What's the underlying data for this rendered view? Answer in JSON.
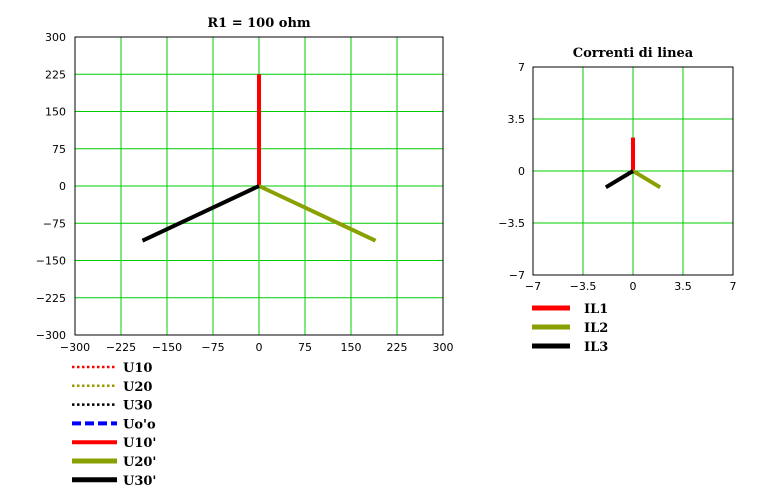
{
  "charts": [
    {
      "id": "left",
      "title": "R1  = 100 ohm",
      "xlim": [
        -300,
        300
      ],
      "ylim": [
        -300,
        300
      ],
      "xticks": [
        "−300",
        "−225",
        "−150",
        "−75",
        "0",
        "75",
        "150",
        "225",
        "300"
      ],
      "yticks": [
        "300",
        "225",
        "150",
        "75",
        "0",
        "−75",
        "−150",
        "−225",
        "−300"
      ],
      "grid": true,
      "gridColor": "#00cc00"
    },
    {
      "id": "right",
      "title": "Correnti di linea",
      "xlim": [
        -7,
        7
      ],
      "ylim": [
        -7,
        7
      ],
      "xticks": [
        "−7",
        "−3.5",
        "0",
        "3.5",
        "7"
      ],
      "yticks": [
        "7",
        "3.5",
        "0",
        "−3.5",
        "−7"
      ],
      "grid": true,
      "gridColor": "#00cc00"
    }
  ],
  "chart_data": [
    {
      "type": "line",
      "title": "R1  = 100 ohm",
      "xlim": [
        -300,
        300
      ],
      "ylim": [
        -300,
        300
      ],
      "grid": true,
      "legend": "bottom-left",
      "series": [
        {
          "name": "U10",
          "style": "dotted",
          "color": "#ff0000",
          "points": [
            [
              0,
              0
            ],
            [
              0,
              0
            ]
          ]
        },
        {
          "name": "U20",
          "style": "dotted",
          "color": "#999900",
          "points": [
            [
              0,
              0
            ],
            [
              0,
              0
            ]
          ]
        },
        {
          "name": "U30",
          "style": "dotted",
          "color": "#000000",
          "points": [
            [
              0,
              0
            ],
            [
              0,
              0
            ]
          ]
        },
        {
          "name": "Uo'o",
          "style": "dashed",
          "color": "#0000ff",
          "points": [
            [
              0,
              0
            ],
            [
              0,
              0
            ]
          ]
        },
        {
          "name": "U10'",
          "style": "solid",
          "color": "#ff0000",
          "points": [
            [
              0,
              0
            ],
            [
              0,
              225
            ]
          ]
        },
        {
          "name": "U20'",
          "style": "solid",
          "color": "#8aa000",
          "points": [
            [
              0,
              0
            ],
            [
              190,
              -110
            ]
          ]
        },
        {
          "name": "U30'",
          "style": "solid",
          "color": "#000000",
          "points": [
            [
              0,
              0
            ],
            [
              -190,
              -110
            ]
          ]
        }
      ]
    },
    {
      "type": "line",
      "title": "Correnti di linea",
      "xlim": [
        -7,
        7
      ],
      "ylim": [
        -7,
        7
      ],
      "grid": true,
      "legend": "bottom-left",
      "series": [
        {
          "name": "IL1",
          "style": "solid",
          "color": "#ff0000",
          "points": [
            [
              0,
              0
            ],
            [
              0,
              2.25
            ]
          ]
        },
        {
          "name": "IL2",
          "style": "solid",
          "color": "#8aa000",
          "points": [
            [
              0,
              0
            ],
            [
              1.9,
              -1.1
            ]
          ]
        },
        {
          "name": "IL3",
          "style": "solid",
          "color": "#000000",
          "points": [
            [
              0,
              0
            ],
            [
              -1.9,
              -1.1
            ]
          ]
        }
      ]
    }
  ]
}
